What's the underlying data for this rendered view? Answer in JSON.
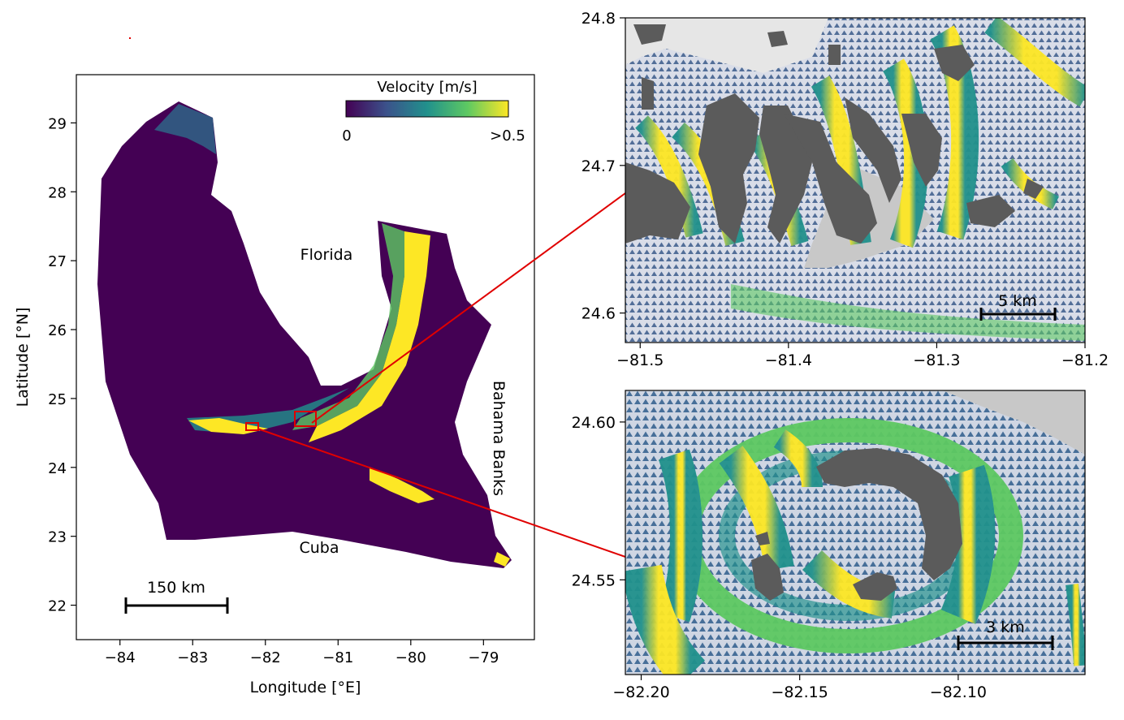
{
  "colors": {
    "low_velocity": "#440154",
    "mid_velocity": "#21918c",
    "high_velocity": "#fde725",
    "land_inset": "#5b5b5b",
    "shallow_inset": "#c8c8c8",
    "inset_water": "#3b5a8a",
    "highlight_box": "#e00000",
    "scalebar": "#000000",
    "colorbar_stops": [
      "#440154",
      "#3b528b",
      "#21918c",
      "#5ec962",
      "#fde725"
    ]
  },
  "main_map": {
    "xlabel": "Longitude [°E]",
    "ylabel": "Latitude [°N]",
    "x_ticks": [
      "−84",
      "−83",
      "−82",
      "−81",
      "−80",
      "−79"
    ],
    "y_ticks": [
      "22",
      "23",
      "24",
      "25",
      "26",
      "27",
      "28",
      "29"
    ],
    "xlim": [
      -84.6,
      -78.3
    ],
    "ylim": [
      21.5,
      29.7
    ],
    "labels": {
      "florida": "Florida",
      "cuba": "Cuba",
      "bahama_banks": "Bahama Banks"
    },
    "scalebar_label": "150 km",
    "colorbar": {
      "title": "Velocity [m/s]",
      "min_label": "0",
      "max_label": ">0.5"
    }
  },
  "inset_top": {
    "x_ticks": [
      "−81.5",
      "−81.4",
      "−81.3",
      "−81.2"
    ],
    "y_ticks": [
      "24.8",
      "24.7",
      "24.6"
    ],
    "xlim": [
      -81.51,
      -81.2
    ],
    "ylim": [
      24.58,
      24.8
    ],
    "scalebar_label": "5 km"
  },
  "inset_bottom": {
    "x_ticks": [
      "−82.20",
      "−82.15",
      "−82.10"
    ],
    "y_ticks": [
      "24.60",
      "24.55"
    ],
    "xlim": [
      -82.205,
      -82.06
    ],
    "ylim": [
      24.52,
      24.61
    ],
    "scalebar_label": "3 km"
  }
}
